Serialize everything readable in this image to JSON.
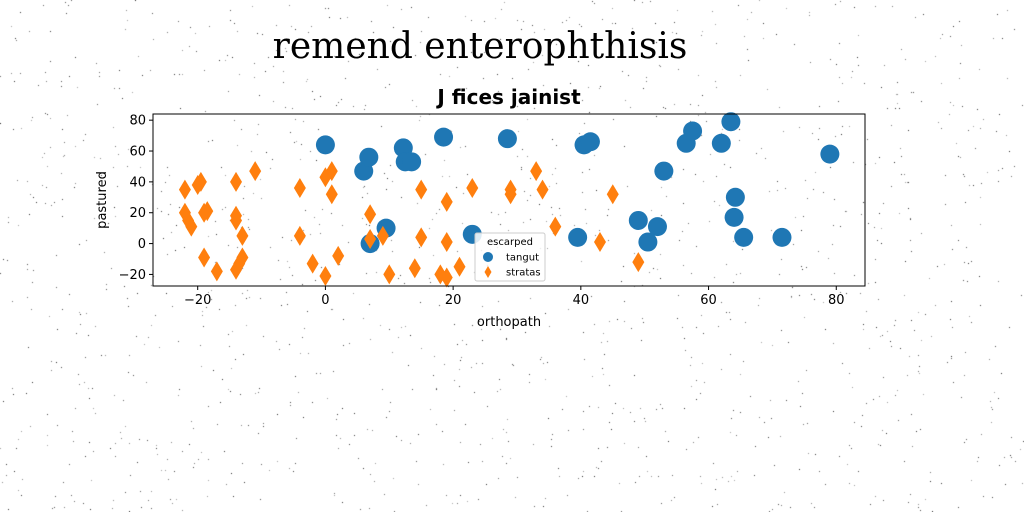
{
  "suptitle": "remend enterophthisis",
  "chart_data": {
    "type": "scatter",
    "title": "J fices jainist",
    "xlabel": "orthopath",
    "ylabel": "pastured",
    "xlim": [
      -27,
      84.5
    ],
    "ylim": [
      -27.5,
      84
    ],
    "xticks": [
      -20,
      0,
      20,
      40,
      60,
      80
    ],
    "yticks": [
      -20,
      0,
      20,
      40,
      60,
      80
    ],
    "grid": false,
    "legend": {
      "title": "escarped",
      "placement": "lower-center"
    },
    "series": [
      {
        "name": "tangut",
        "marker": "circle",
        "color": "#1f77b4",
        "points": [
          [
            0,
            64
          ],
          [
            6,
            47
          ],
          [
            6.8,
            56
          ],
          [
            7,
            0
          ],
          [
            9.5,
            10
          ],
          [
            12.2,
            62
          ],
          [
            12.5,
            53
          ],
          [
            13.5,
            53
          ],
          [
            18.5,
            69
          ],
          [
            23,
            6
          ],
          [
            28.5,
            68
          ],
          [
            39.5,
            4
          ],
          [
            40.5,
            64
          ],
          [
            41.5,
            66
          ],
          [
            49,
            15
          ],
          [
            50.5,
            1
          ],
          [
            52,
            11
          ],
          [
            53,
            47
          ],
          [
            56.5,
            65
          ],
          [
            57.5,
            73
          ],
          [
            62,
            65
          ],
          [
            63.5,
            79
          ],
          [
            64,
            17
          ],
          [
            64.2,
            30
          ],
          [
            65.5,
            4
          ],
          [
            71.5,
            4
          ],
          [
            79,
            58
          ]
        ]
      },
      {
        "name": "stratas",
        "marker": "thin_diamond",
        "color": "#ff7f0e",
        "points": [
          [
            -22,
            35
          ],
          [
            -22,
            20
          ],
          [
            -21.5,
            15
          ],
          [
            -21,
            11
          ],
          [
            -20,
            38
          ],
          [
            -19.5,
            40
          ],
          [
            -19,
            20
          ],
          [
            -19,
            -9
          ],
          [
            -18.5,
            21
          ],
          [
            -17,
            -18
          ],
          [
            -14,
            40
          ],
          [
            -14,
            18
          ],
          [
            -14,
            15
          ],
          [
            -14,
            -17
          ],
          [
            -13.5,
            -13
          ],
          [
            -13,
            5
          ],
          [
            -13,
            -9
          ],
          [
            -11,
            47
          ],
          [
            -4,
            36
          ],
          [
            -4,
            5
          ],
          [
            -2,
            -13
          ],
          [
            0,
            -21
          ],
          [
            0,
            43
          ],
          [
            1,
            47
          ],
          [
            1,
            32
          ],
          [
            2,
            -8
          ],
          [
            7,
            19
          ],
          [
            7,
            3
          ],
          [
            9,
            5
          ],
          [
            10,
            -20
          ],
          [
            14,
            -16
          ],
          [
            15,
            35
          ],
          [
            15,
            4
          ],
          [
            18,
            -20
          ],
          [
            19,
            27
          ],
          [
            19,
            1
          ],
          [
            19,
            -22
          ],
          [
            21,
            -15
          ],
          [
            23,
            36
          ],
          [
            29,
            32
          ],
          [
            29,
            35
          ],
          [
            33,
            47
          ],
          [
            34,
            35
          ],
          [
            36,
            11
          ],
          [
            43,
            1
          ],
          [
            45,
            32
          ],
          [
            49,
            -12
          ]
        ]
      }
    ]
  }
}
